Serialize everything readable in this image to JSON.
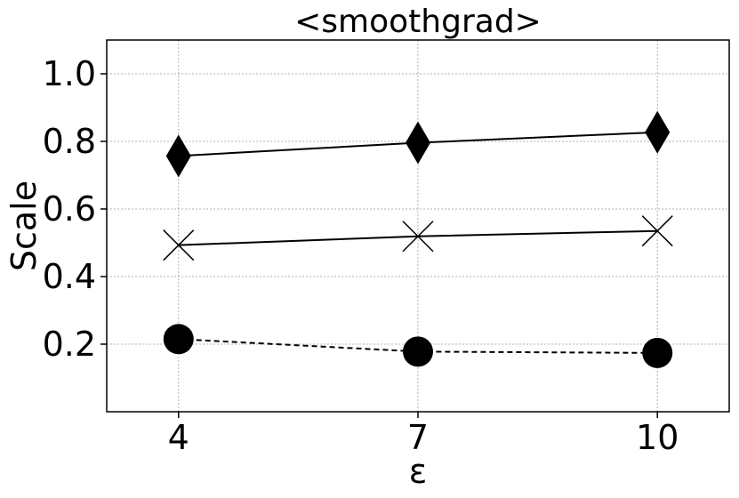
{
  "chart_data": {
    "type": "line",
    "title": "<smoothgrad>",
    "xlabel": "ε",
    "ylabel": "Scale",
    "x": [
      4,
      7,
      10
    ],
    "x_tick_labels": [
      "4",
      "7",
      "10"
    ],
    "y_ticks": [
      0.2,
      0.4,
      0.6,
      0.8,
      1.0
    ],
    "y_tick_labels": [
      "0.2",
      "0.4",
      "0.6",
      "0.8",
      "1.0"
    ],
    "ylim": [
      0.0,
      1.1
    ],
    "grid": true,
    "series": [
      {
        "values": [
          0.757,
          0.796,
          0.827
        ],
        "marker": "diamond",
        "line_style": "solid",
        "color": "#000000"
      },
      {
        "values": [
          0.493,
          0.519,
          0.535
        ],
        "marker": "x",
        "line_style": "solid",
        "color": "#000000"
      },
      {
        "values": [
          0.215,
          0.178,
          0.174
        ],
        "marker": "circle",
        "line_style": "dashed",
        "color": "#000000"
      }
    ]
  }
}
